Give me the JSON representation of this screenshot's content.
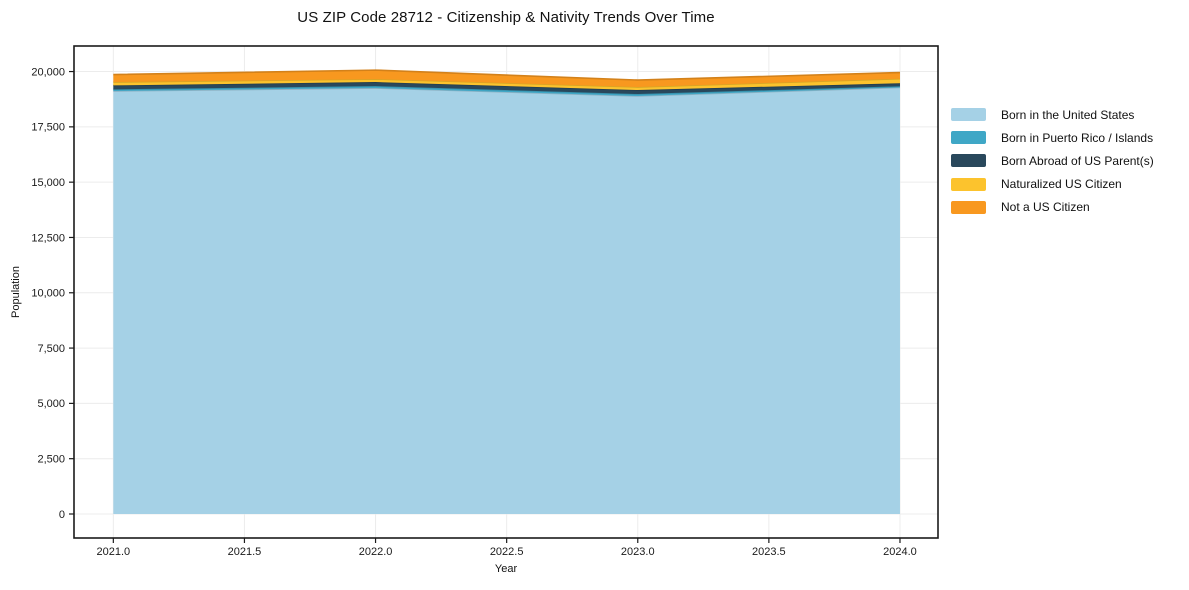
{
  "chart_data": {
    "type": "area",
    "stacked": true,
    "title": "US ZIP Code 28712 - Citizenship & Nativity Trends Over Time",
    "xlabel": "Year",
    "ylabel": "Population",
    "x": [
      2021,
      2022,
      2023,
      2024
    ],
    "series": [
      {
        "name": "Born in the United States",
        "color": "#a5d1e6",
        "values": [
          19120,
          19255,
          18895,
          19280
        ]
      },
      {
        "name": "Born in Puerto Rico / Islands",
        "color": "#3fa7c6",
        "values": [
          75,
          90,
          90,
          55
        ]
      },
      {
        "name": "Born Abroad of US Parent(s)",
        "color": "#29485c",
        "values": [
          180,
          180,
          180,
          135
        ]
      },
      {
        "name": "Naturalized US Citizen",
        "color": "#fcc32d",
        "values": [
          150,
          135,
          135,
          205
        ]
      },
      {
        "name": "Not a US Citizen",
        "color": "#f8981f",
        "values": [
          340,
          405,
          315,
          280
        ]
      }
    ],
    "totals": [
      19865,
      20065,
      19615,
      19955
    ],
    "xticks": {
      "values": [
        2021.0,
        2021.5,
        2022.0,
        2022.5,
        2023.0,
        2023.5,
        2024.0
      ],
      "labels": [
        "2021.0",
        "2021.5",
        "2022.0",
        "2022.5",
        "2023.0",
        "2023.5",
        "2024.0"
      ]
    },
    "yticks": {
      "values": [
        0,
        2500,
        5000,
        7500,
        10000,
        12500,
        15000,
        17500,
        20000
      ],
      "labels": [
        "0",
        "2,500",
        "5,000",
        "7,500",
        "10,000",
        "12,500",
        "15,000",
        "17,500",
        "20,000"
      ]
    },
    "xlim": [
      2020.85,
      2024.145
    ],
    "ylim": [
      -1085,
      21155
    ],
    "grid": true,
    "legend_position": "right",
    "colors": {
      "grid": "#ececec",
      "spine": "#1a1a1a",
      "tick_label": "#1a1a1a",
      "background": "#ffffff"
    }
  }
}
